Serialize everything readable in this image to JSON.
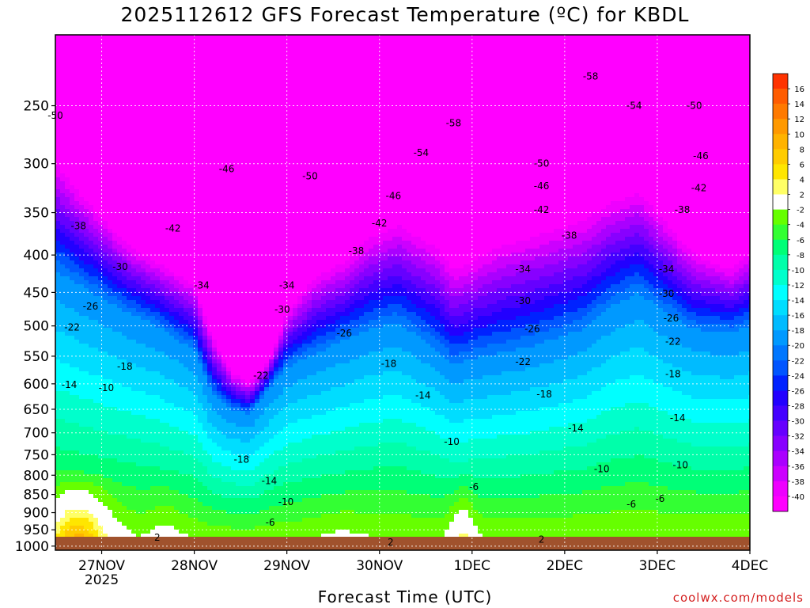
{
  "chart_data": {
    "type": "heatmap",
    "title": "2025112612 GFS Forecast Temperature (ºC) for KBDL",
    "xlabel": "Forecast Time (UTC)",
    "ylabel": "",
    "credit": "coolwx.com/models",
    "x_ticks": [
      {
        "label": "27NOV",
        "sublabel": "2025",
        "day": 1
      },
      {
        "label": "28NOV",
        "day": 2
      },
      {
        "label": "29NOV",
        "day": 3
      },
      {
        "label": "30NOV",
        "day": 4
      },
      {
        "label": "1DEC",
        "day": 5
      },
      {
        "label": "2DEC",
        "day": 6
      },
      {
        "label": "3DEC",
        "day": 7
      },
      {
        "label": "4DEC",
        "day": 8
      }
    ],
    "x_range_days": [
      0.5,
      8.0
    ],
    "y_ticks": [
      250,
      300,
      350,
      400,
      450,
      500,
      550,
      600,
      650,
      700,
      750,
      800,
      850,
      900,
      950,
      1000
    ],
    "y_range_hpa": [
      200,
      1013
    ],
    "y_scale": "log-pressure",
    "grid": true,
    "colorbar": {
      "labels": [
        "16",
        "14",
        "12",
        "10",
        "8",
        "6",
        "4",
        "2",
        "-2",
        "-4",
        "-6",
        "-8",
        "-10",
        "-12",
        "-14",
        "-16",
        "-18",
        "-20",
        "-22",
        "-24",
        "-26",
        "-28",
        "-30",
        "-32",
        "-34",
        "-36",
        "-38",
        "-40"
      ],
      "colors": [
        "#ff3300",
        "#ff5c00",
        "#ff7a00",
        "#ff9900",
        "#ffb300",
        "#ffcc00",
        "#ffe600",
        "#ffff66",
        "#ffffff",
        "#66ff00",
        "#33ff33",
        "#00ff77",
        "#00ffaa",
        "#00ffcc",
        "#00ffff",
        "#00ddff",
        "#00bbff",
        "#0099ff",
        "#0077ff",
        "#0055ff",
        "#0022ff",
        "#2200ff",
        "#4400ff",
        "#6600ff",
        "#8800ff",
        "#aa00ff",
        "#cc00ff",
        "#ee00ff",
        "#ff00ff"
      ]
    },
    "contour_labels": [
      {
        "text": "-50",
        "day": 0.5,
        "hpa": 258
      },
      {
        "text": "-46",
        "day": 2.35,
        "hpa": 305
      },
      {
        "text": "-38",
        "day": 0.75,
        "hpa": 365
      },
      {
        "text": "-42",
        "day": 1.77,
        "hpa": 368
      },
      {
        "text": "-30",
        "day": 1.2,
        "hpa": 415
      },
      {
        "text": "-34",
        "day": 2.08,
        "hpa": 440
      },
      {
        "text": "-26",
        "day": 0.88,
        "hpa": 470
      },
      {
        "text": "-22",
        "day": 0.68,
        "hpa": 502
      },
      {
        "text": "-18",
        "day": 1.25,
        "hpa": 568
      },
      {
        "text": "-14",
        "day": 0.65,
        "hpa": 602
      },
      {
        "text": "-10",
        "day": 1.05,
        "hpa": 608
      },
      {
        "text": "-50",
        "day": 3.25,
        "hpa": 312
      },
      {
        "text": "-46",
        "day": 4.15,
        "hpa": 332
      },
      {
        "text": "-42",
        "day": 4.0,
        "hpa": 362
      },
      {
        "text": "-38",
        "day": 3.75,
        "hpa": 395
      },
      {
        "text": "-34",
        "day": 3.0,
        "hpa": 440
      },
      {
        "text": "-30",
        "day": 2.95,
        "hpa": 475
      },
      {
        "text": "-26",
        "day": 3.62,
        "hpa": 512
      },
      {
        "text": "-22",
        "day": 2.72,
        "hpa": 585
      },
      {
        "text": "-18",
        "day": 2.51,
        "hpa": 762
      },
      {
        "text": "-14",
        "day": 2.81,
        "hpa": 815
      },
      {
        "text": "-10",
        "day": 2.99,
        "hpa": 870
      },
      {
        "text": "-6",
        "day": 2.82,
        "hpa": 928
      },
      {
        "text": "2",
        "day": 1.6,
        "hpa": 973
      },
      {
        "text": "-18",
        "day": 4.1,
        "hpa": 563
      },
      {
        "text": "-14",
        "day": 4.47,
        "hpa": 622
      },
      {
        "text": "-10",
        "day": 4.78,
        "hpa": 720
      },
      {
        "text": "-6",
        "day": 5.02,
        "hpa": 830
      },
      {
        "text": "2",
        "day": 4.12,
        "hpa": 988
      },
      {
        "text": "2",
        "day": 5.75,
        "hpa": 980
      },
      {
        "text": "-58",
        "day": 4.8,
        "hpa": 264
      },
      {
        "text": "-54",
        "day": 4.45,
        "hpa": 290
      },
      {
        "text": "-58",
        "day": 6.28,
        "hpa": 228
      },
      {
        "text": "-54",
        "day": 6.75,
        "hpa": 250
      },
      {
        "text": "-50",
        "day": 7.4,
        "hpa": 250
      },
      {
        "text": "-50",
        "day": 5.75,
        "hpa": 300
      },
      {
        "text": "-46",
        "day": 5.75,
        "hpa": 322
      },
      {
        "text": "-42",
        "day": 5.75,
        "hpa": 347
      },
      {
        "text": "-38",
        "day": 6.05,
        "hpa": 376
      },
      {
        "text": "-34",
        "day": 5.55,
        "hpa": 418
      },
      {
        "text": "-30",
        "day": 5.55,
        "hpa": 462
      },
      {
        "text": "-26",
        "day": 5.65,
        "hpa": 505
      },
      {
        "text": "-22",
        "day": 5.55,
        "hpa": 560
      },
      {
        "text": "-18",
        "day": 5.78,
        "hpa": 620
      },
      {
        "text": "-14",
        "day": 6.12,
        "hpa": 690
      },
      {
        "text": "-10",
        "day": 6.4,
        "hpa": 785
      },
      {
        "text": "-6",
        "day": 6.72,
        "hpa": 877
      },
      {
        "text": "-6",
        "day": 7.03,
        "hpa": 862
      },
      {
        "text": "-46",
        "day": 7.47,
        "hpa": 293
      },
      {
        "text": "-42",
        "day": 7.45,
        "hpa": 324
      },
      {
        "text": "-38",
        "day": 7.27,
        "hpa": 347
      },
      {
        "text": "-34",
        "day": 7.1,
        "hpa": 418
      },
      {
        "text": "-30",
        "day": 7.1,
        "hpa": 452
      },
      {
        "text": "-26",
        "day": 7.15,
        "hpa": 488
      },
      {
        "text": "-22",
        "day": 7.17,
        "hpa": 525
      },
      {
        "text": "-18",
        "day": 7.17,
        "hpa": 582
      },
      {
        "text": "-14",
        "day": 7.22,
        "hpa": 668
      },
      {
        "text": "-10",
        "day": 7.25,
        "hpa": 775
      }
    ]
  }
}
